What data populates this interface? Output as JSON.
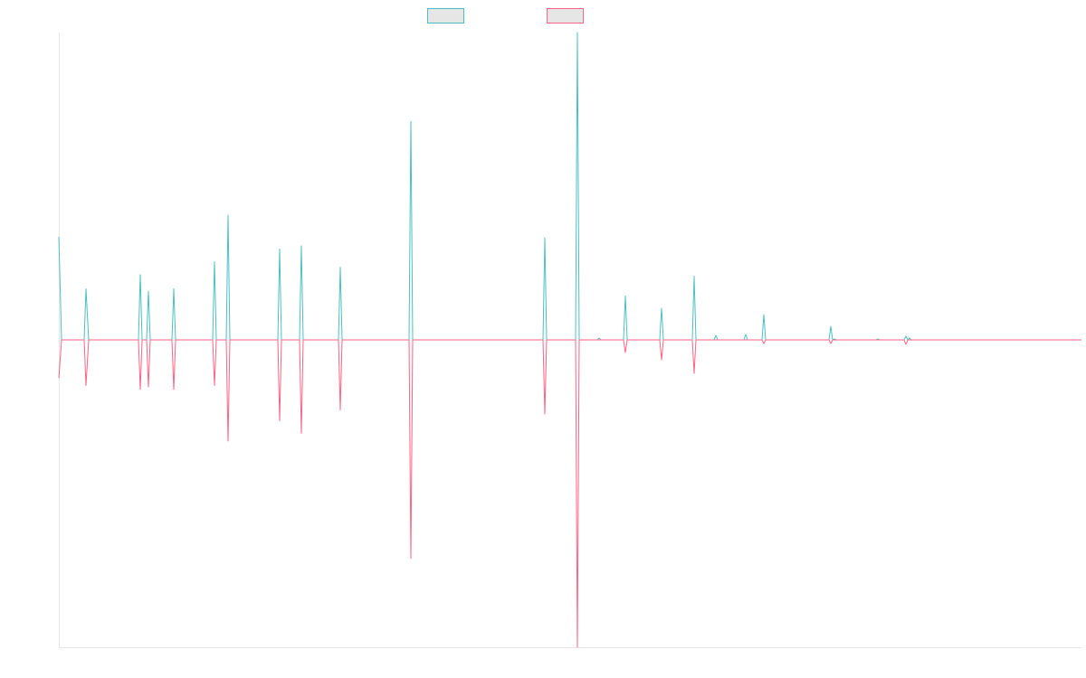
{
  "chart_data": {
    "type": "line",
    "title": "",
    "xlabel": "",
    "ylabel": "",
    "grid": false,
    "legend": {
      "position": "top-center",
      "entries": [
        "",
        ""
      ]
    },
    "xlim": [
      0,
      1130
    ],
    "ylim": [
      -1,
      1
    ],
    "series": [
      {
        "name": "",
        "color": "#4bc0c0",
        "fill": "#e6e6e6",
        "points": [
          [
            0,
            0.335
          ],
          [
            3,
            0
          ],
          [
            28,
            0
          ],
          [
            30,
            0.166
          ],
          [
            33,
            0
          ],
          [
            88,
            0
          ],
          [
            90,
            0.212
          ],
          [
            92,
            0
          ],
          [
            97,
            0
          ],
          [
            99,
            0.158
          ],
          [
            101,
            0
          ],
          [
            125,
            0
          ],
          [
            127,
            0.166
          ],
          [
            129,
            0
          ],
          [
            170,
            0
          ],
          [
            172,
            0.254
          ],
          [
            174,
            0
          ],
          [
            185,
            0
          ],
          [
            187,
            0.406
          ],
          [
            189,
            0
          ],
          [
            242,
            0
          ],
          [
            244,
            0.296
          ],
          [
            246,
            0
          ],
          [
            266,
            0
          ],
          [
            268,
            0.306
          ],
          [
            270,
            0
          ],
          [
            309,
            0
          ],
          [
            311,
            0.236
          ],
          [
            313,
            0
          ],
          [
            387,
            0
          ],
          [
            389,
            0.711
          ],
          [
            391,
            0
          ],
          [
            535,
            0
          ],
          [
            537,
            0.332
          ],
          [
            539,
            0
          ],
          [
            571,
            0
          ],
          [
            573,
            1.0
          ],
          [
            575,
            0
          ],
          [
            595,
            0
          ],
          [
            597,
            0.006
          ],
          [
            599,
            0
          ],
          [
            624,
            0
          ],
          [
            626,
            0.143
          ],
          [
            628,
            0
          ],
          [
            664,
            0
          ],
          [
            666,
            0.103
          ],
          [
            668,
            0
          ],
          [
            700,
            0
          ],
          [
            702,
            0.207
          ],
          [
            704,
            0
          ],
          [
            724,
            0
          ],
          [
            726,
            0.015
          ],
          [
            728,
            0
          ],
          [
            757,
            0
          ],
          [
            759,
            0.018
          ],
          [
            761,
            0
          ],
          [
            777,
            0
          ],
          [
            779,
            0.082
          ],
          [
            781,
            0
          ],
          [
            851,
            0
          ],
          [
            853,
            0.044
          ],
          [
            855,
            0
          ],
          [
            857,
            0.003
          ],
          [
            859,
            0
          ],
          [
            903,
            0
          ],
          [
            905,
            0.003
          ],
          [
            907,
            0
          ],
          [
            934,
            0
          ],
          [
            936,
            0.012
          ],
          [
            938,
            0
          ],
          [
            940,
            0.006
          ],
          [
            942,
            0
          ],
          [
            1130,
            0
          ]
        ]
      },
      {
        "name": "",
        "color": "#ff6384",
        "fill": "#e6e6e6",
        "points": [
          [
            0,
            -0.124
          ],
          [
            3,
            0
          ],
          [
            28,
            0
          ],
          [
            30,
            -0.148
          ],
          [
            33,
            0
          ],
          [
            88,
            0
          ],
          [
            90,
            -0.161
          ],
          [
            92,
            0
          ],
          [
            97,
            0
          ],
          [
            99,
            -0.153
          ],
          [
            101,
            0
          ],
          [
            125,
            0
          ],
          [
            127,
            -0.161
          ],
          [
            129,
            0
          ],
          [
            170,
            0
          ],
          [
            172,
            -0.148
          ],
          [
            174,
            0
          ],
          [
            185,
            0
          ],
          [
            187,
            -0.329
          ],
          [
            189,
            0
          ],
          [
            242,
            0
          ],
          [
            244,
            -0.263
          ],
          [
            246,
            0
          ],
          [
            266,
            0
          ],
          [
            268,
            -0.304
          ],
          [
            270,
            0
          ],
          [
            309,
            0
          ],
          [
            311,
            -0.228
          ],
          [
            313,
            0
          ],
          [
            387,
            0
          ],
          [
            389,
            -0.711
          ],
          [
            391,
            0
          ],
          [
            535,
            0
          ],
          [
            537,
            -0.241
          ],
          [
            539,
            0
          ],
          [
            571,
            0
          ],
          [
            573,
            -1.0
          ],
          [
            575,
            0
          ],
          [
            624,
            0
          ],
          [
            626,
            -0.041
          ],
          [
            628,
            0
          ],
          [
            664,
            0
          ],
          [
            666,
            -0.065
          ],
          [
            668,
            0
          ],
          [
            700,
            0
          ],
          [
            702,
            -0.109
          ],
          [
            704,
            0
          ],
          [
            777,
            0
          ],
          [
            779,
            -0.012
          ],
          [
            781,
            0
          ],
          [
            851,
            0
          ],
          [
            853,
            -0.012
          ],
          [
            855,
            0
          ],
          [
            934,
            0
          ],
          [
            936,
            -0.015
          ],
          [
            938,
            0
          ],
          [
            1130,
            0
          ]
        ]
      }
    ]
  }
}
